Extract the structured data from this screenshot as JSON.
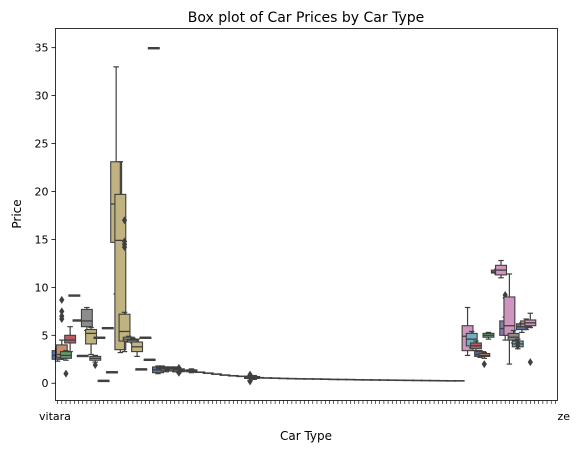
{
  "chart_data": {
    "type": "box",
    "title": "Box plot of Car Prices by Car Type",
    "xlabel": "Car Type",
    "ylabel": "Price",
    "ylim": [
      -1.8,
      37
    ],
    "yticks": [
      0,
      5,
      10,
      15,
      20,
      25,
      30,
      35
    ],
    "grid": false,
    "legend": "none",
    "first_category_label": "vitara",
    "last_category_label": "ze",
    "category_count": 120,
    "boxes": [
      {
        "i": 0,
        "q1": 2.5,
        "median": 2.9,
        "q3": 3.4,
        "lo": 2.3,
        "hi": 3.6,
        "color": "#5875a4"
      },
      {
        "i": 1,
        "q1": 2.7,
        "median": 3.0,
        "q3": 4.0,
        "lo": 2.5,
        "hi": 4.5,
        "color": "#cc8963",
        "out": [
          6.7,
          7.0,
          7.5,
          8.7
        ]
      },
      {
        "i": 2,
        "q1": 2.6,
        "median": 2.9,
        "q3": 3.3,
        "lo": 2.4,
        "hi": 3.4,
        "color": "#5f9e6e",
        "out": [
          1.0
        ]
      },
      {
        "i": 3,
        "q1": 4.2,
        "median": 4.5,
        "q3": 5.0,
        "lo": 3.3,
        "hi": 5.9,
        "color": "#b55d60"
      },
      {
        "i": 4,
        "q1": 9.2,
        "median": 9.2,
        "q3": 9.2,
        "color": "#857aab"
      },
      {
        "i": 5,
        "q1": 6.6,
        "median": 6.6,
        "q3": 6.6,
        "color": "#8d7866"
      },
      {
        "i": 6,
        "q1": 2.9,
        "median": 2.9,
        "q3": 2.9,
        "color": "#d095bf"
      },
      {
        "i": 7,
        "q1": 5.9,
        "median": 6.5,
        "q3": 7.7,
        "lo": 5.5,
        "hi": 7.9,
        "color": "#8c8c8c"
      },
      {
        "i": 8,
        "q1": 4.1,
        "median": 5.2,
        "q3": 5.6,
        "lo": 3.0,
        "hi": 5.8,
        "color": "#c1b37f"
      },
      {
        "i": 9,
        "q1": 2.4,
        "median": 2.6,
        "q3": 2.8,
        "lo": 2.2,
        "hi": 2.9,
        "color": "#71aec0",
        "out": [
          1.9
        ]
      },
      {
        "i": 10,
        "q1": 4.8,
        "median": 4.8,
        "q3": 4.8,
        "color": "#5875a4"
      },
      {
        "i": 11,
        "q1": 0.3,
        "median": 0.3,
        "q3": 0.3,
        "color": "#cc8963"
      },
      {
        "i": 12,
        "q1": 5.8,
        "median": 5.8,
        "q3": 5.8,
        "color": "#5f9e6e"
      },
      {
        "i": 13,
        "q1": 1.2,
        "median": 1.2,
        "q3": 1.2,
        "color": "#b55d60"
      },
      {
        "i": 14,
        "q1": 14.7,
        "median": 18.7,
        "q3": 23.1,
        "lo": 9.3,
        "hi": 33.0,
        "color": "#c1b37f"
      },
      {
        "i": 15,
        "q1": 3.5,
        "median": 14.9,
        "q3": 19.7,
        "lo": 3.2,
        "hi": 23.1,
        "color": "#c1b37f"
      },
      {
        "i": 16,
        "q1": 4.4,
        "median": 5.4,
        "q3": 7.2,
        "lo": 3.3,
        "hi": 7.4,
        "color": "#c1b37f",
        "out": [
          14.2,
          14.5,
          14.8,
          17.0
        ]
      },
      {
        "i": 17,
        "q1": 4.4,
        "median": 4.6,
        "q3": 4.8,
        "lo": 4.3,
        "hi": 4.9,
        "color": "#c1b37f"
      },
      {
        "i": 18,
        "q1": 4.3,
        "median": 4.5,
        "q3": 4.6,
        "lo": 4.2,
        "hi": 4.7,
        "color": "#71aec0"
      },
      {
        "i": 19,
        "q1": 3.3,
        "median": 3.8,
        "q3": 4.3,
        "lo": 2.8,
        "hi": 4.6,
        "color": "#c1b37f"
      },
      {
        "i": 20,
        "q1": 1.5,
        "median": 1.5,
        "q3": 1.5,
        "color": "#5875a4"
      },
      {
        "i": 21,
        "q1": 4.8,
        "median": 4.8,
        "q3": 4.8,
        "color": "#cc8963"
      },
      {
        "i": 22,
        "q1": 2.5,
        "median": 2.5,
        "q3": 2.5,
        "color": "#5f9e6e"
      },
      {
        "i": 23,
        "q1": 35.0,
        "median": 35.0,
        "q3": 35.0,
        "color": "#b55d60"
      },
      {
        "i": 24,
        "q1": 1.1,
        "median": 1.4,
        "q3": 1.7,
        "lo": 1.0,
        "hi": 1.8,
        "color": "#5875a4"
      },
      {
        "i": 25,
        "q1": 1.5,
        "median": 1.6,
        "q3": 1.7,
        "lo": 1.4,
        "hi": 1.8,
        "color": "#cc8963"
      },
      {
        "i": 26,
        "q1": 1.3,
        "median": 1.5,
        "q3": 1.6,
        "lo": 1.2,
        "hi": 1.7,
        "color": "#5f9e6e"
      },
      {
        "i": 27,
        "q1": 1.4,
        "median": 1.5,
        "q3": 1.6,
        "lo": 1.3,
        "hi": 1.7,
        "color": "#b55d60"
      },
      {
        "i": 28,
        "q1": 1.3,
        "median": 1.5,
        "q3": 1.6,
        "lo": 1.2,
        "hi": 1.7,
        "color": "#857aab"
      },
      {
        "i": 29,
        "q1": 1.2,
        "median": 1.4,
        "q3": 1.5,
        "lo": 1.1,
        "hi": 1.6,
        "color": "#8d7866",
        "out": [
          1.1,
          1.6
        ]
      },
      {
        "i": 32,
        "q1": 1.2,
        "median": 1.3,
        "q3": 1.4,
        "lo": 1.1,
        "hi": 1.5,
        "color": "#5875a4"
      },
      {
        "i": 46,
        "q1": 0.5,
        "median": 0.6,
        "q3": 0.7,
        "lo": 0.3,
        "hi": 0.8,
        "color": "#5f9e6e",
        "out": [
          0.2,
          0.9
        ]
      },
      {
        "i": 47,
        "q1": 0.5,
        "median": 0.6,
        "q3": 0.7,
        "lo": 0.4,
        "hi": 0.8,
        "color": "#857aab"
      },
      {
        "i": 98,
        "q1": 3.4,
        "median": 4.9,
        "q3": 6.0,
        "lo": 2.9,
        "hi": 7.9,
        "color": "#d095bf"
      },
      {
        "i": 99,
        "q1": 3.9,
        "median": 4.6,
        "q3": 5.2,
        "lo": 3.7,
        "hi": 5.4,
        "color": "#71aec0"
      },
      {
        "i": 100,
        "q1": 3.6,
        "median": 3.9,
        "q3": 4.2,
        "lo": 3.4,
        "hi": 4.4,
        "color": "#b55d60"
      },
      {
        "i": 101,
        "q1": 2.8,
        "median": 3.0,
        "q3": 3.3,
        "lo": 2.7,
        "hi": 3.4,
        "color": "#5875a4"
      },
      {
        "i": 102,
        "q1": 2.8,
        "median": 2.9,
        "q3": 3.1,
        "lo": 2.6,
        "hi": 3.2,
        "color": "#cc8963",
        "out": [
          2.0
        ]
      },
      {
        "i": 103,
        "q1": 4.8,
        "median": 5.0,
        "q3": 5.2,
        "lo": 4.6,
        "hi": 5.3,
        "color": "#5f9e6e"
      },
      {
        "i": 105,
        "q1": 11.5,
        "median": 11.6,
        "q3": 11.8,
        "lo": 11.4,
        "hi": 11.9,
        "color": "#b55d60"
      },
      {
        "i": 106,
        "q1": 11.3,
        "median": 11.8,
        "q3": 12.3,
        "lo": 11.0,
        "hi": 12.8,
        "color": "#d095bf"
      },
      {
        "i": 107,
        "q1": 5.0,
        "median": 5.7,
        "q3": 6.5,
        "lo": 4.5,
        "hi": 6.9,
        "color": "#857aab",
        "out": [
          8.9,
          9.2
        ]
      },
      {
        "i": 108,
        "q1": 5.0,
        "median": 6.0,
        "q3": 9.0,
        "lo": 2.0,
        "hi": 11.4,
        "color": "#d095bf"
      },
      {
        "i": 109,
        "q1": 4.5,
        "median": 4.8,
        "q3": 5.2,
        "lo": 4.2,
        "hi": 5.5,
        "color": "#8c8c8c"
      },
      {
        "i": 110,
        "q1": 3.8,
        "median": 4.1,
        "q3": 4.4,
        "lo": 3.6,
        "hi": 4.6,
        "color": "#71aec0",
        "out": [
          3.9,
          4.2
        ]
      },
      {
        "i": 111,
        "q1": 5.6,
        "median": 5.9,
        "q3": 6.2,
        "lo": 5.3,
        "hi": 6.3,
        "color": "#5875a4"
      },
      {
        "i": 112,
        "q1": 5.9,
        "median": 6.2,
        "q3": 6.5,
        "lo": 5.6,
        "hi": 6.7,
        "color": "#cc8963"
      },
      {
        "i": 113,
        "q1": 6.0,
        "median": 6.3,
        "q3": 6.6,
        "lo": 5.8,
        "hi": 7.3,
        "color": "#d095bf",
        "out": [
          2.2
        ]
      }
    ],
    "trend_markers": [
      {
        "i": 30,
        "y": 1.3
      },
      {
        "i": 32,
        "y": 1.25
      },
      {
        "i": 34,
        "y": 1.15
      },
      {
        "i": 36,
        "y": 1.05
      },
      {
        "i": 38,
        "y": 0.95
      },
      {
        "i": 40,
        "y": 0.85
      },
      {
        "i": 42,
        "y": 0.78
      },
      {
        "i": 44,
        "y": 0.72
      },
      {
        "i": 46,
        "y": 0.62
      },
      {
        "i": 48,
        "y": 0.58
      },
      {
        "i": 50,
        "y": 0.55
      },
      {
        "i": 52,
        "y": 0.53
      },
      {
        "i": 54,
        "y": 0.5
      },
      {
        "i": 56,
        "y": 0.48
      },
      {
        "i": 58,
        "y": 0.46
      },
      {
        "i": 60,
        "y": 0.45
      },
      {
        "i": 62,
        "y": 0.44
      },
      {
        "i": 64,
        "y": 0.42
      },
      {
        "i": 66,
        "y": 0.4
      },
      {
        "i": 68,
        "y": 0.39
      },
      {
        "i": 70,
        "y": 0.38
      },
      {
        "i": 72,
        "y": 0.36
      },
      {
        "i": 74,
        "y": 0.35
      },
      {
        "i": 76,
        "y": 0.34
      },
      {
        "i": 78,
        "y": 0.33
      },
      {
        "i": 80,
        "y": 0.32
      },
      {
        "i": 82,
        "y": 0.31
      },
      {
        "i": 84,
        "y": 0.3
      },
      {
        "i": 86,
        "y": 0.29
      },
      {
        "i": 88,
        "y": 0.28
      },
      {
        "i": 90,
        "y": 0.27
      },
      {
        "i": 92,
        "y": 0.26
      },
      {
        "i": 94,
        "y": 0.25
      },
      {
        "i": 96,
        "y": 0.25
      }
    ]
  }
}
